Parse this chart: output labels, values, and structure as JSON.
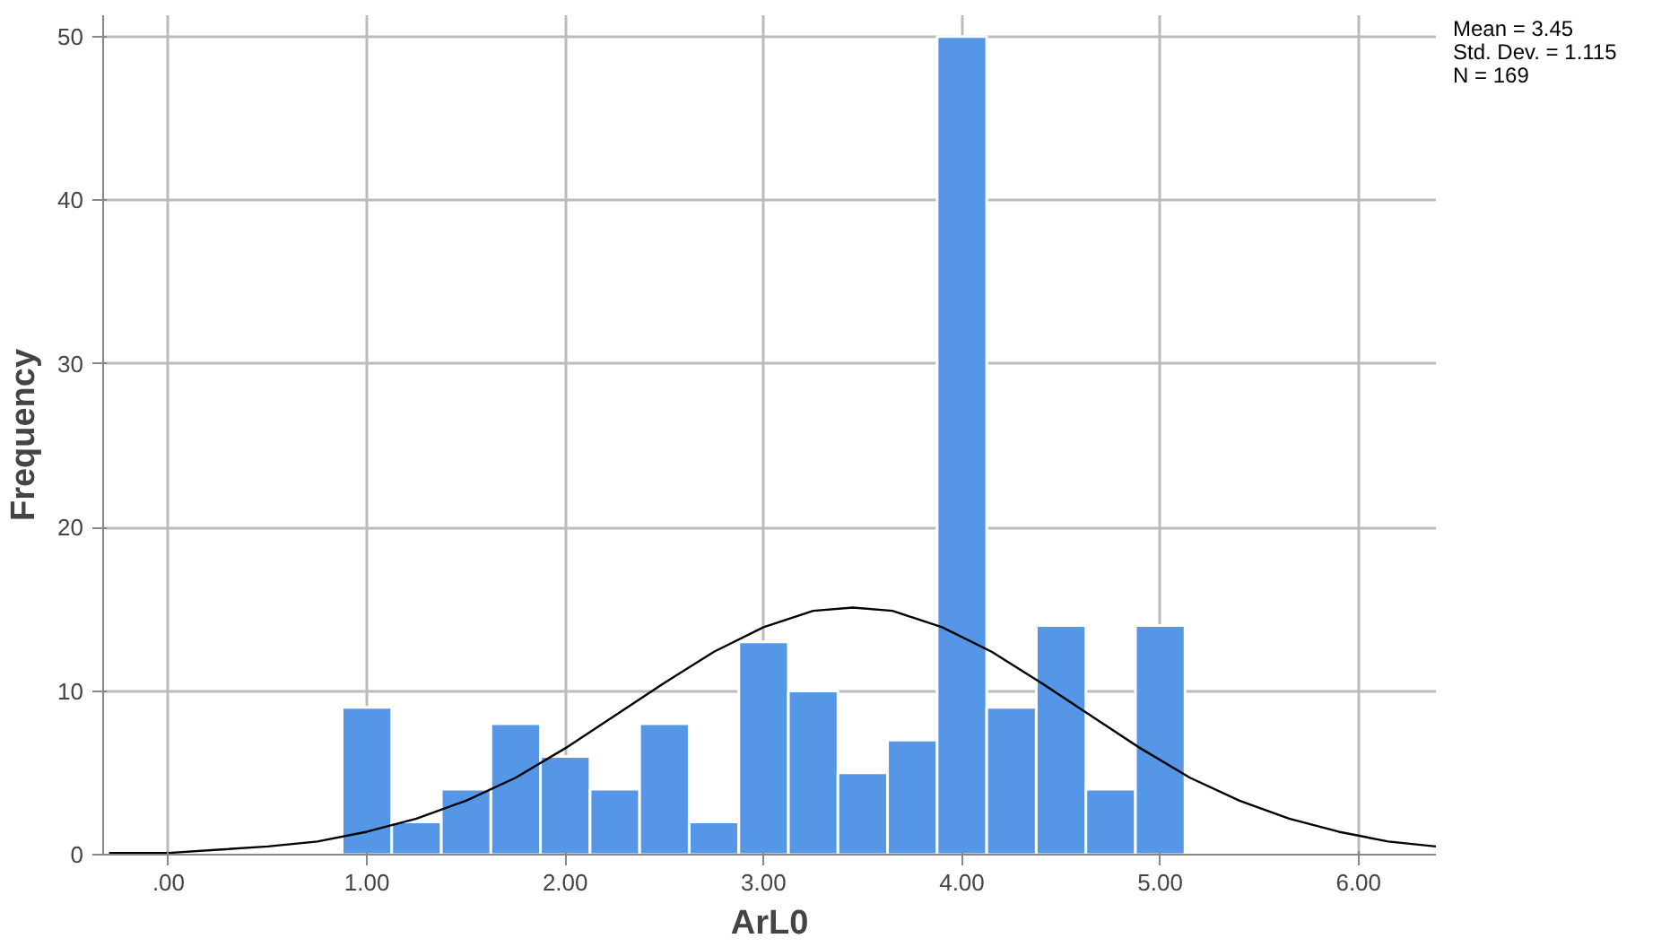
{
  "chart_data": {
    "type": "histogram",
    "xlabel": "ArL0",
    "ylabel": "Frequency",
    "bins": [
      0.875,
      1.125,
      1.375,
      1.625,
      1.875,
      2.125,
      2.375,
      2.625,
      2.875,
      3.125,
      3.375,
      3.625,
      3.875,
      4.125,
      4.375,
      4.625,
      4.875,
      5.125
    ],
    "series": [
      {
        "color": "#5597e6",
        "values": [
          9,
          2,
          4,
          8,
          6,
          4,
          8,
          2,
          13,
          10,
          5,
          7,
          50,
          9,
          14,
          4,
          14
        ]
      },
      {
        "type": "line",
        "color": "#000000",
        "x": [
          -0.3,
          0,
          0.25,
          0.5,
          0.75,
          1.0,
          1.25,
          1.5,
          1.75,
          2.0,
          2.25,
          2.5,
          2.75,
          3.0,
          3.25,
          3.45,
          3.65,
          3.9,
          4.15,
          4.4,
          4.65,
          4.9,
          5.15,
          5.4,
          5.65,
          5.9,
          6.15,
          6.39
        ],
        "values": [
          0.1,
          0.1,
          0.3,
          0.5,
          0.8,
          1.4,
          2.2,
          3.3,
          4.7,
          6.5,
          8.5,
          10.5,
          12.4,
          13.9,
          14.9,
          15.1,
          14.9,
          13.9,
          12.4,
          10.5,
          8.5,
          6.5,
          4.7,
          3.3,
          2.2,
          1.4,
          0.8,
          0.5
        ]
      }
    ],
    "xlim": [
      -0.33,
      6.39
    ],
    "ylim": [
      0,
      51.3
    ],
    "xticks": [
      {
        "value": 0,
        "label": ".00"
      },
      {
        "value": 1,
        "label": "1.00"
      },
      {
        "value": 2,
        "label": "2.00"
      },
      {
        "value": 3,
        "label": "3.00"
      },
      {
        "value": 4,
        "label": "4.00"
      },
      {
        "value": 5,
        "label": "5.00"
      },
      {
        "value": 6,
        "label": "6.00"
      }
    ],
    "yticks": [
      0,
      10,
      20,
      30,
      40,
      50
    ],
    "grid": true,
    "annotations": [
      "Mean = 3.45",
      "Std. Dev. = 1.115",
      "N = 169"
    ]
  }
}
